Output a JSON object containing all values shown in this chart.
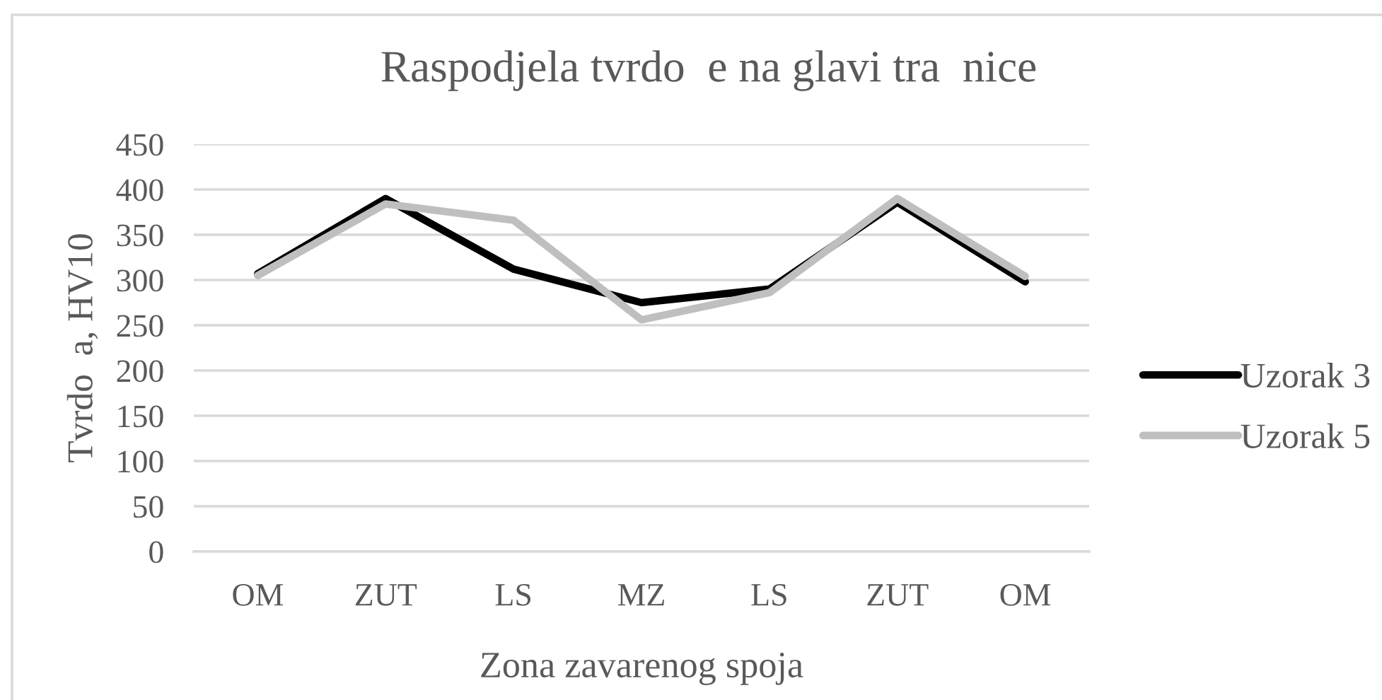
{
  "chart_data": {
    "type": "line",
    "title": "Raspodjela tvrdo  e na glavi tra  nice",
    "xlabel": "Zona zavarenog spoja",
    "ylabel": "Tvrdo  a, HV10",
    "categories": [
      "OM",
      "ZUT",
      "LS",
      "MZ",
      "LS",
      "ZUT",
      "OM"
    ],
    "series": [
      {
        "name": "Uzorak 3",
        "color": "#000000",
        "values": [
          307,
          390,
          312,
          275,
          290,
          386,
          298
        ]
      },
      {
        "name": "Uzorak 5",
        "color": "#bfbfbf",
        "values": [
          305,
          384,
          366,
          256,
          286,
          390,
          304
        ]
      }
    ],
    "ylim": [
      0,
      450
    ],
    "yticks": [
      0,
      50,
      100,
      150,
      200,
      250,
      300,
      350,
      400,
      450
    ],
    "grid": "y",
    "legend": "right",
    "line_style": "solid"
  }
}
